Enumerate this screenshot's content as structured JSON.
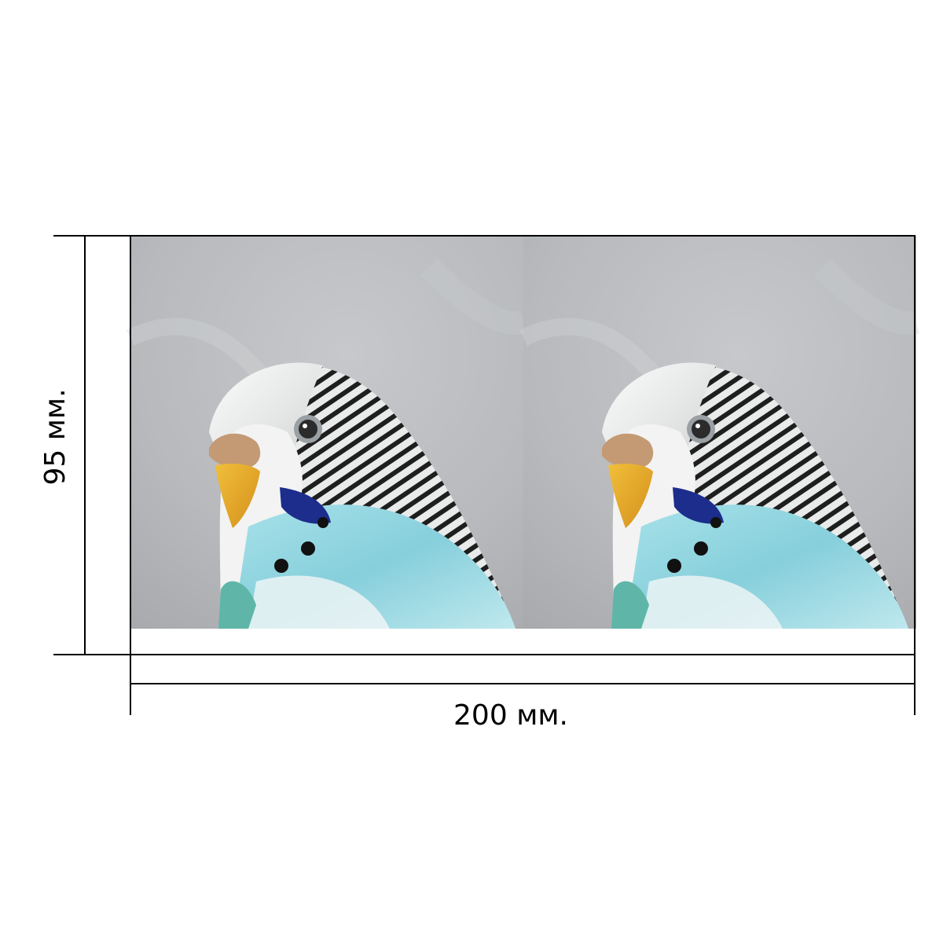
{
  "dimensions": {
    "height_label": "95 мм.",
    "width_label": "200 мм."
  },
  "photo": {
    "subject": "budgerigar-head",
    "panel_count": 2
  },
  "colors": {
    "line": "#000000",
    "background": "#ffffff",
    "photo_background": "#b8babd",
    "plumage_blue": "#8fd3dd",
    "cheek_patch": "#1c2d8c",
    "beak": "#e6a92a",
    "cere": "#c49a74"
  }
}
